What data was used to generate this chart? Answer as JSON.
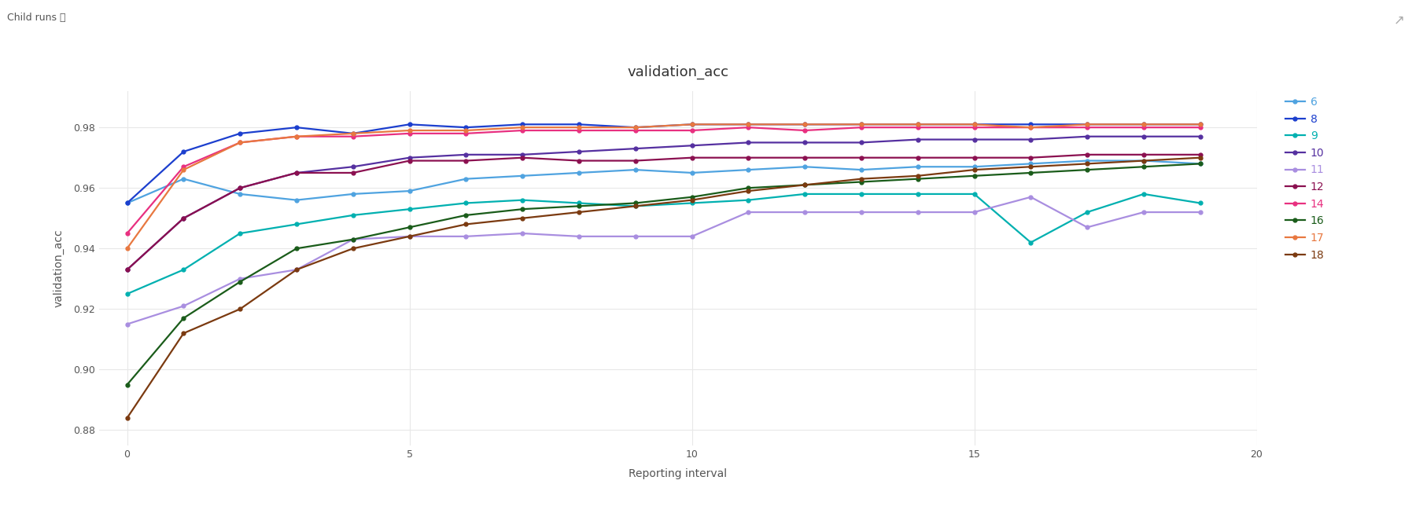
{
  "title": "validation_acc",
  "xlabel": "Reporting interval",
  "ylabel": "validation_acc",
  "xlim": [
    -0.5,
    20
  ],
  "ylim": [
    0.875,
    0.992
  ],
  "yticks": [
    0.88,
    0.9,
    0.92,
    0.94,
    0.96,
    0.98
  ],
  "xticks": [
    0,
    5,
    10,
    15,
    20
  ],
  "background_color": "#ffffff",
  "series": {
    "6": {
      "color": "#4fa3e0",
      "x": [
        0,
        1,
        2,
        3,
        4,
        5,
        6,
        7,
        8,
        9,
        10,
        11,
        12,
        13,
        14,
        15,
        16,
        17,
        18,
        19
      ],
      "y": [
        0.955,
        0.963,
        0.958,
        0.956,
        0.958,
        0.959,
        0.963,
        0.964,
        0.965,
        0.966,
        0.965,
        0.966,
        0.967,
        0.966,
        0.967,
        0.967,
        0.968,
        0.969,
        0.969,
        0.968
      ]
    },
    "8": {
      "color": "#1c3fce",
      "x": [
        0,
        1,
        2,
        3,
        4,
        5,
        6,
        7,
        8,
        9,
        10,
        11,
        12,
        13,
        14,
        15,
        16,
        17,
        18,
        19
      ],
      "y": [
        0.955,
        0.972,
        0.978,
        0.98,
        0.978,
        0.981,
        0.98,
        0.981,
        0.981,
        0.98,
        0.981,
        0.981,
        0.981,
        0.981,
        0.981,
        0.981,
        0.981,
        0.981,
        0.981,
        0.981
      ]
    },
    "9": {
      "color": "#00b0b0",
      "x": [
        0,
        1,
        2,
        3,
        4,
        5,
        6,
        7,
        8,
        9,
        10,
        11,
        12,
        13,
        14,
        15,
        16,
        17,
        18,
        19
      ],
      "y": [
        0.925,
        0.933,
        0.945,
        0.948,
        0.951,
        0.953,
        0.955,
        0.956,
        0.955,
        0.954,
        0.955,
        0.956,
        0.958,
        0.958,
        0.958,
        0.958,
        0.942,
        0.952,
        0.958,
        0.955
      ]
    },
    "10": {
      "color": "#5530a0",
      "x": [
        0,
        1,
        2,
        3,
        4,
        5,
        6,
        7,
        8,
        9,
        10,
        11,
        12,
        13,
        14,
        15,
        16,
        17,
        18,
        19
      ],
      "y": [
        0.933,
        0.95,
        0.96,
        0.965,
        0.967,
        0.97,
        0.971,
        0.971,
        0.972,
        0.973,
        0.974,
        0.975,
        0.975,
        0.975,
        0.976,
        0.976,
        0.976,
        0.977,
        0.977,
        0.977
      ]
    },
    "11": {
      "color": "#a98ee0",
      "x": [
        0,
        1,
        2,
        3,
        4,
        5,
        6,
        7,
        8,
        9,
        10,
        11,
        12,
        13,
        14,
        15,
        16,
        17,
        18,
        19
      ],
      "y": [
        0.915,
        0.921,
        0.93,
        0.933,
        0.943,
        0.944,
        0.944,
        0.945,
        0.944,
        0.944,
        0.944,
        0.952,
        0.952,
        0.952,
        0.952,
        0.952,
        0.957,
        0.947,
        0.952,
        0.952
      ]
    },
    "12": {
      "color": "#8b1050",
      "x": [
        0,
        1,
        2,
        3,
        4,
        5,
        6,
        7,
        8,
        9,
        10,
        11,
        12,
        13,
        14,
        15,
        16,
        17,
        18,
        19
      ],
      "y": [
        0.933,
        0.95,
        0.96,
        0.965,
        0.965,
        0.969,
        0.969,
        0.97,
        0.969,
        0.969,
        0.97,
        0.97,
        0.97,
        0.97,
        0.97,
        0.97,
        0.97,
        0.971,
        0.971,
        0.971
      ]
    },
    "14": {
      "color": "#e83080",
      "x": [
        0,
        1,
        2,
        3,
        4,
        5,
        6,
        7,
        8,
        9,
        10,
        11,
        12,
        13,
        14,
        15,
        16,
        17,
        18,
        19
      ],
      "y": [
        0.945,
        0.967,
        0.975,
        0.977,
        0.977,
        0.978,
        0.978,
        0.979,
        0.979,
        0.979,
        0.979,
        0.98,
        0.979,
        0.98,
        0.98,
        0.98,
        0.98,
        0.98,
        0.98,
        0.98
      ]
    },
    "16": {
      "color": "#1a5c1a",
      "x": [
        0,
        1,
        2,
        3,
        4,
        5,
        6,
        7,
        8,
        9,
        10,
        11,
        12,
        13,
        14,
        15,
        16,
        17,
        18,
        19
      ],
      "y": [
        0.895,
        0.917,
        0.929,
        0.94,
        0.943,
        0.947,
        0.951,
        0.953,
        0.954,
        0.955,
        0.957,
        0.96,
        0.961,
        0.962,
        0.963,
        0.964,
        0.965,
        0.966,
        0.967,
        0.968
      ]
    },
    "17": {
      "color": "#e87840",
      "x": [
        0,
        1,
        2,
        3,
        4,
        5,
        6,
        7,
        8,
        9,
        10,
        11,
        12,
        13,
        14,
        15,
        16,
        17,
        18,
        19
      ],
      "y": [
        0.94,
        0.966,
        0.975,
        0.977,
        0.978,
        0.979,
        0.979,
        0.98,
        0.98,
        0.98,
        0.981,
        0.981,
        0.981,
        0.981,
        0.981,
        0.981,
        0.98,
        0.981,
        0.981,
        0.981
      ]
    },
    "18": {
      "color": "#7b3a10",
      "x": [
        0,
        1,
        2,
        3,
        4,
        5,
        6,
        7,
        8,
        9,
        10,
        11,
        12,
        13,
        14,
        15,
        16,
        17,
        18,
        19
      ],
      "y": [
        0.884,
        0.912,
        0.92,
        0.933,
        0.94,
        0.944,
        0.948,
        0.95,
        0.952,
        0.954,
        0.956,
        0.959,
        0.961,
        0.963,
        0.964,
        0.966,
        0.967,
        0.968,
        0.969,
        0.97
      ]
    }
  },
  "grid_color": "#e8e8e8",
  "title_fontsize": 13,
  "label_fontsize": 10,
  "tick_fontsize": 9,
  "legend_fontsize": 10,
  "line_width": 1.6,
  "marker_size": 3.5,
  "header_text": "Child runs ⓘ",
  "header_fontsize": 9
}
